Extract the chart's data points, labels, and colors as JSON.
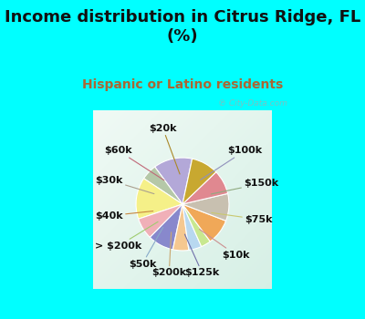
{
  "title": "Income distribution in Citrus Ridge, FL\n(%)",
  "subtitle": "Hispanic or Latino residents",
  "background_outer": "#00FFFF",
  "background_chart_gradient": [
    "#f0faf8",
    "#d0ede0"
  ],
  "labels": [
    "$100k",
    "$150k",
    "$75k",
    "$10k",
    "$125k",
    "$200k",
    "$50k",
    "> $200k",
    "$40k",
    "$30k",
    "$60k",
    "$20k"
  ],
  "sizes": [
    13.5,
    5.5,
    14.5,
    7.5,
    9.0,
    5.5,
    4.5,
    3.5,
    9.0,
    9.5,
    8.5,
    9.5
  ],
  "colors": [
    "#b3a8d8",
    "#b5c8a8",
    "#f5f088",
    "#f0b0b8",
    "#8888cc",
    "#f5c890",
    "#b8d8f0",
    "#c8e890",
    "#f0a858",
    "#c8c0b0",
    "#e08890",
    "#c8a830"
  ],
  "watermark": "℗ City-Data.com",
  "title_fontsize": 13,
  "subtitle_fontsize": 10,
  "subtitle_color": "#aa6633",
  "label_fontsize": 8,
  "startangle": 78
}
